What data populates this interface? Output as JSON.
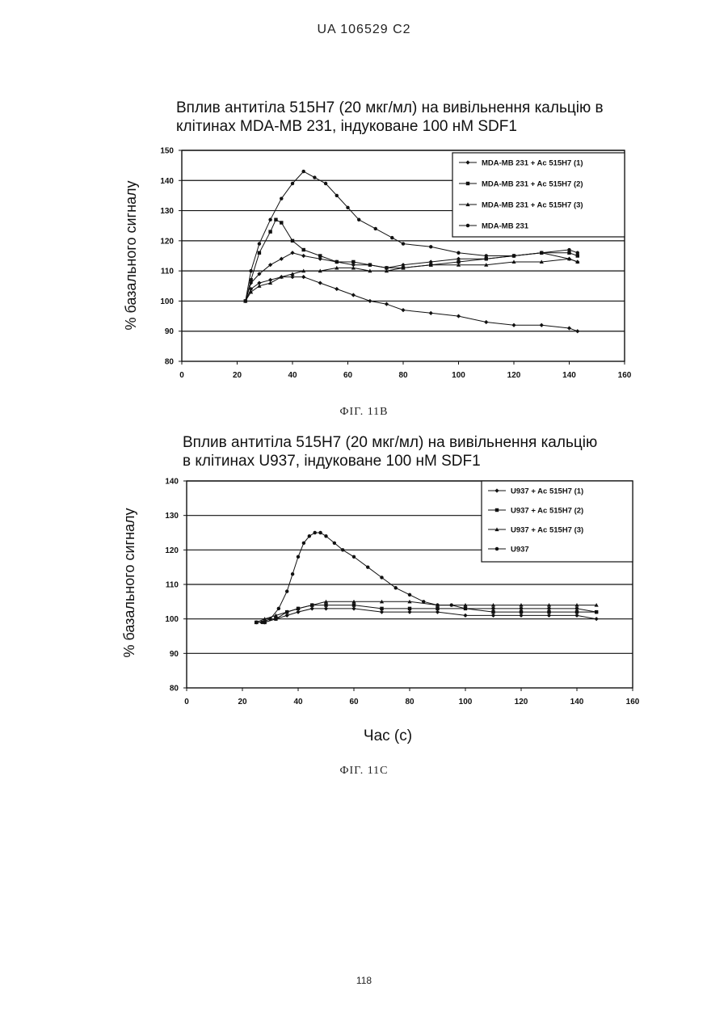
{
  "header": {
    "patent_id": "UA   106529   C2"
  },
  "figures": [
    {
      "caption": "ФІГ. 11В"
    },
    {
      "caption": "ФІГ. 11С"
    }
  ],
  "common_xlabel": "Час (с)",
  "page_number": "118",
  "chart_data": [
    {
      "type": "line",
      "title_lines": [
        "Вплив антитіла 515Н7 (20 мкг/мл) на вивільнення кальцію в",
        "клітинах MDA-MB 231, індуковане 100 нМ SDF1"
      ],
      "xlabel": "",
      "ylabel": "% базального сигналу",
      "xlim": [
        0,
        160
      ],
      "ylim": [
        80,
        150
      ],
      "xticks": [
        0,
        20,
        40,
        60,
        80,
        100,
        120,
        140,
        160
      ],
      "yticks": [
        80,
        90,
        100,
        110,
        120,
        130,
        140,
        150
      ],
      "grid": "horizontal",
      "legend_position": "top-right",
      "series": [
        {
          "name": "MDA-MB 231 + Ac 515H7 (1)",
          "marker": "diamond",
          "x": [
            23,
            25,
            28,
            32,
            36,
            40,
            44,
            50,
            56,
            62,
            68,
            74,
            80,
            90,
            100,
            110,
            120,
            130,
            140,
            143
          ],
          "y": [
            100,
            106,
            109,
            112,
            114,
            116,
            115,
            114,
            113,
            112,
            112,
            111,
            112,
            113,
            114,
            114,
            115,
            116,
            114,
            113
          ]
        },
        {
          "name": "MDA-MB 231 + Ac 515H7 (2)",
          "marker": "square",
          "x": [
            23,
            25,
            28,
            32,
            34,
            36,
            40,
            44,
            50,
            56,
            62,
            68,
            74,
            80,
            90,
            100,
            110,
            120,
            130,
            140,
            143
          ],
          "y": [
            100,
            107,
            116,
            123,
            127,
            126,
            120,
            117,
            115,
            113,
            113,
            112,
            111,
            111,
            112,
            113,
            114,
            115,
            116,
            116,
            115
          ]
        },
        {
          "name": "MDA-MB 231 + Ac 515H7 (3)",
          "marker": "triangle",
          "x": [
            23,
            25,
            28,
            32,
            36,
            40,
            44,
            50,
            56,
            62,
            68,
            74,
            80,
            90,
            100,
            110,
            120,
            130,
            140,
            143
          ],
          "y": [
            100,
            103,
            105,
            106,
            108,
            109,
            110,
            110,
            111,
            111,
            110,
            110,
            111,
            112,
            112,
            112,
            113,
            113,
            114,
            113
          ]
        },
        {
          "name": "MDA-MB 231",
          "marker": "circle",
          "x": [
            23,
            25,
            28,
            32,
            36,
            40,
            44,
            48,
            52,
            56,
            60,
            64,
            70,
            76,
            80,
            90,
            100,
            110,
            120,
            130,
            140,
            143
          ],
          "y": [
            100,
            110,
            119,
            127,
            134,
            139,
            143,
            141,
            139,
            135,
            131,
            127,
            124,
            121,
            119,
            118,
            116,
            115,
            115,
            116,
            117,
            116
          ]
        },
        {
          "name": "",
          "marker": "diamond",
          "x": [
            23,
            25,
            28,
            32,
            36,
            40,
            44,
            50,
            56,
            62,
            68,
            74,
            80,
            90,
            100,
            110,
            120,
            130,
            140,
            143
          ],
          "y": [
            100,
            104,
            106,
            107,
            108,
            108,
            108,
            106,
            104,
            102,
            100,
            99,
            97,
            96,
            95,
            93,
            92,
            92,
            91,
            90
          ]
        }
      ]
    },
    {
      "type": "line",
      "title_lines": [
        "Вплив антитіла 515Н7 (20 мкг/мл) на вивільнення кальцію",
        "в клітинах U937, індуковане 100 нМ SDF1"
      ],
      "xlabel": "Час (с)",
      "ylabel": "% базального сигналу",
      "xlim": [
        0,
        160
      ],
      "ylim": [
        80,
        140
      ],
      "xticks": [
        0,
        20,
        40,
        60,
        80,
        100,
        120,
        140,
        160
      ],
      "yticks": [
        80,
        90,
        100,
        110,
        120,
        130,
        140
      ],
      "grid": "horizontal",
      "legend_position": "top-right",
      "series": [
        {
          "name": "U937 + Ac 515H7 (1)",
          "marker": "diamond",
          "x": [
            25,
            28,
            32,
            36,
            40,
            45,
            50,
            60,
            70,
            80,
            90,
            100,
            110,
            120,
            130,
            140,
            147
          ],
          "y": [
            99,
            99,
            100,
            101,
            102,
            103,
            103,
            103,
            102,
            102,
            102,
            101,
            101,
            101,
            101,
            101,
            100
          ]
        },
        {
          "name": "U937 + Ac 515H7 (2)",
          "marker": "square",
          "x": [
            25,
            28,
            32,
            36,
            40,
            45,
            50,
            60,
            70,
            80,
            90,
            100,
            110,
            120,
            130,
            140,
            147
          ],
          "y": [
            99,
            99,
            100,
            102,
            103,
            104,
            104,
            104,
            103,
            103,
            103,
            103,
            102,
            102,
            102,
            102,
            102
          ]
        },
        {
          "name": "U937 + Ac 515H7 (3)",
          "marker": "triangle",
          "x": [
            25,
            28,
            32,
            36,
            40,
            45,
            50,
            60,
            70,
            80,
            90,
            100,
            110,
            120,
            130,
            140,
            147
          ],
          "y": [
            99,
            100,
            101,
            102,
            103,
            104,
            105,
            105,
            105,
            105,
            104,
            104,
            104,
            104,
            104,
            104,
            104
          ]
        },
        {
          "name": "U937",
          "marker": "circle",
          "x": [
            27,
            30,
            33,
            36,
            38,
            40,
            42,
            44,
            46,
            48,
            50,
            53,
            56,
            60,
            65,
            70,
            75,
            80,
            85,
            90,
            95,
            100,
            110,
            120,
            130,
            140,
            147
          ],
          "y": [
            99,
            100,
            103,
            108,
            113,
            118,
            122,
            124,
            125,
            125,
            124,
            122,
            120,
            118,
            115,
            112,
            109,
            107,
            105,
            104,
            104,
            103,
            103,
            103,
            103,
            103,
            102
          ]
        }
      ]
    }
  ]
}
